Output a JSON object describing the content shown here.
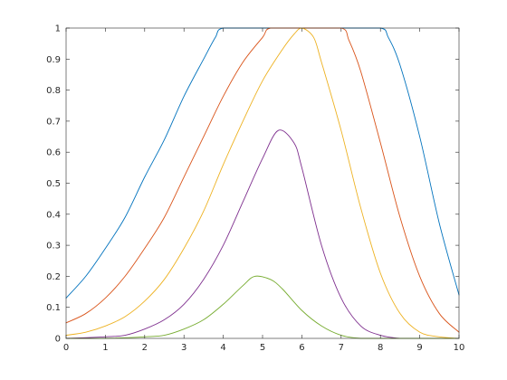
{
  "chart_data": {
    "type": "line",
    "title": "",
    "xlabel": "",
    "ylabel": "",
    "xlim": [
      0,
      10
    ],
    "ylim": [
      0,
      1
    ],
    "grid": false,
    "x_ticks": [
      "0",
      "1",
      "2",
      "3",
      "4",
      "5",
      "6",
      "7",
      "8",
      "9",
      "10"
    ],
    "y_ticks": [
      "0",
      "0.1",
      "0.2",
      "0.3",
      "0.4",
      "0.5",
      "0.6",
      "0.7",
      "0.8",
      "0.9",
      "1"
    ],
    "series": [
      {
        "color": "#0072BD",
        "x": [
          0,
          0.5,
          1,
          1.5,
          2,
          2.5,
          3,
          3.5,
          3.8,
          4,
          5,
          6,
          7,
          8,
          8.2,
          8.5,
          9,
          9.5,
          10
        ],
        "values": [
          0.13,
          0.2,
          0.29,
          0.39,
          0.52,
          0.64,
          0.78,
          0.9,
          0.97,
          1.0,
          1.0,
          1.0,
          1.0,
          1.0,
          0.97,
          0.88,
          0.65,
          0.37,
          0.14
        ]
      },
      {
        "color": "#D95319",
        "x": [
          0,
          0.5,
          1,
          1.5,
          2,
          2.5,
          3,
          3.5,
          4,
          4.5,
          5,
          5.2,
          6,
          7,
          7.2,
          7.5,
          8,
          8.5,
          9,
          9.5,
          10
        ],
        "values": [
          0.05,
          0.08,
          0.13,
          0.2,
          0.29,
          0.39,
          0.52,
          0.65,
          0.78,
          0.89,
          0.97,
          1.0,
          1.0,
          1.0,
          0.96,
          0.86,
          0.63,
          0.39,
          0.2,
          0.08,
          0.02
        ]
      },
      {
        "color": "#EDB120",
        "x": [
          0,
          0.5,
          1,
          1.5,
          2,
          2.5,
          3,
          3.5,
          4,
          4.5,
          5,
          5.5,
          5.8,
          6,
          6.3,
          6.5,
          7,
          7.5,
          8,
          8.5,
          9,
          9.5,
          10
        ],
        "values": [
          0.01,
          0.02,
          0.04,
          0.07,
          0.12,
          0.19,
          0.29,
          0.41,
          0.56,
          0.7,
          0.83,
          0.93,
          0.98,
          1.0,
          0.97,
          0.89,
          0.67,
          0.42,
          0.21,
          0.08,
          0.02,
          0.005,
          0.0
        ]
      },
      {
        "color": "#7E2F8E",
        "x": [
          0,
          1,
          1.5,
          2,
          2.5,
          3,
          3.5,
          4,
          4.5,
          5,
          5.4,
          5.8,
          6,
          6.5,
          7,
          7.5,
          8,
          8.5,
          9,
          10
        ],
        "values": [
          0.0,
          0.005,
          0.01,
          0.03,
          0.06,
          0.11,
          0.19,
          0.3,
          0.44,
          0.58,
          0.67,
          0.63,
          0.55,
          0.3,
          0.13,
          0.04,
          0.01,
          0.0,
          0.0,
          0.0
        ]
      },
      {
        "color": "#77AC30",
        "x": [
          0,
          1,
          2,
          2.5,
          3,
          3.5,
          4,
          4.5,
          4.8,
          5.2,
          5.5,
          6,
          6.5,
          7,
          7.5,
          8,
          9,
          10
        ],
        "values": [
          0.0,
          0.0,
          0.005,
          0.01,
          0.03,
          0.06,
          0.11,
          0.17,
          0.2,
          0.19,
          0.16,
          0.09,
          0.04,
          0.01,
          0.0,
          0.0,
          0.0,
          0.0
        ]
      }
    ]
  }
}
